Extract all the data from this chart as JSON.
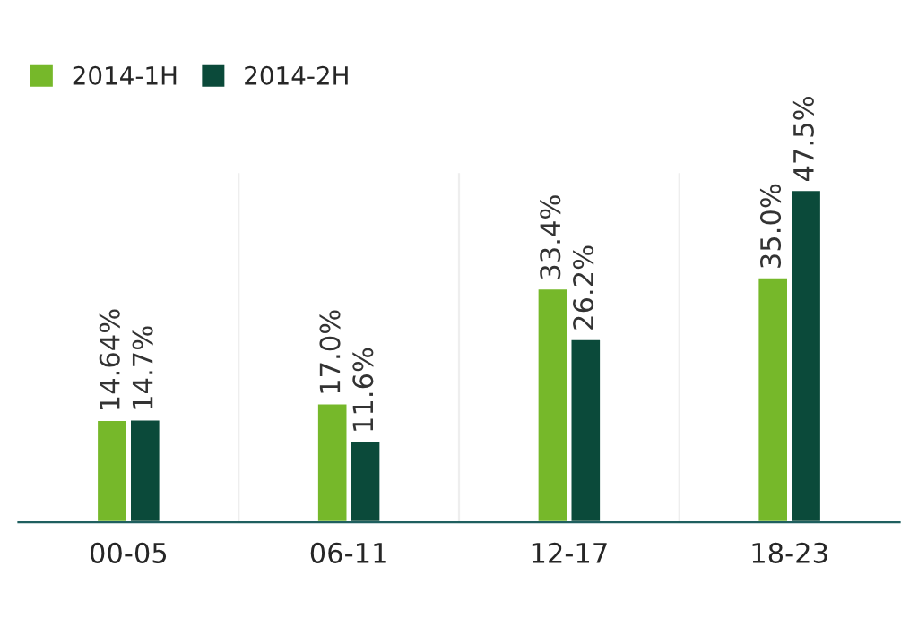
{
  "chart_data": {
    "type": "bar",
    "categories": [
      "00-05",
      "06-11",
      "12-17",
      "18-23"
    ],
    "series": [
      {
        "name": "2014-1H",
        "color": "#76b82a",
        "values": [
          14.64,
          17.0,
          33.4,
          35.0
        ],
        "value_labels": [
          "14.64%",
          "17.0%",
          "33.4%",
          "35.0%"
        ]
      },
      {
        "name": "2014-2H",
        "color": "#0b4a3a",
        "values": [
          14.7,
          11.6,
          26.2,
          47.5
        ],
        "value_labels": [
          "14.7%",
          "11.6%",
          "26.2%",
          "47.5%"
        ]
      }
    ],
    "legend": "top left",
    "grid": false
  }
}
